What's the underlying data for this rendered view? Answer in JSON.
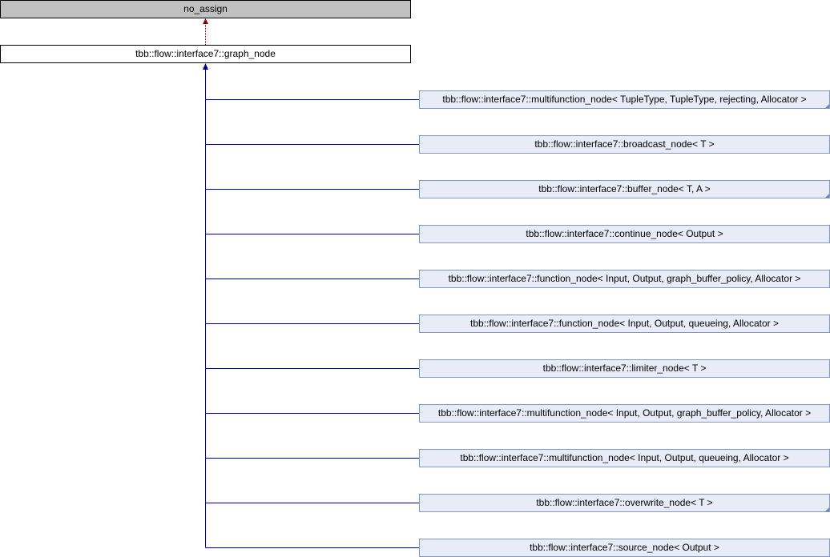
{
  "diagram": {
    "grandparent": {
      "label": "no_assign"
    },
    "parent": {
      "label": "tbb::flow::interface7::graph_node"
    },
    "children": [
      {
        "label": "tbb::flow::interface7::multifunction_node< TupleType, TupleType, rejecting, Allocator >",
        "has_more": true
      },
      {
        "label": "tbb::flow::interface7::broadcast_node< T >",
        "has_more": false
      },
      {
        "label": "tbb::flow::interface7::buffer_node< T, A >",
        "has_more": true
      },
      {
        "label": "tbb::flow::interface7::continue_node< Output >",
        "has_more": false
      },
      {
        "label": "tbb::flow::interface7::function_node< Input, Output, graph_buffer_policy, Allocator >",
        "has_more": false
      },
      {
        "label": "tbb::flow::interface7::function_node< Input, Output, queueing, Allocator >",
        "has_more": false
      },
      {
        "label": "tbb::flow::interface7::limiter_node< T >",
        "has_more": false
      },
      {
        "label": "tbb::flow::interface7::multifunction_node< Input, Output, graph_buffer_policy, Allocator >",
        "has_more": false
      },
      {
        "label": "tbb::flow::interface7::multifunction_node< Input, Output, queueing, Allocator >",
        "has_more": false
      },
      {
        "label": "tbb::flow::interface7::overwrite_node< T >",
        "has_more": true
      },
      {
        "label": "tbb::flow::interface7::source_node< Output >",
        "has_more": false
      }
    ],
    "colors": {
      "inheritance": "#000080",
      "private_inheritance": "#8b0000",
      "grandparent_fill": "#c0c0c0",
      "child_fill": "#e8ecf6",
      "child_border": "#8496c8"
    }
  }
}
